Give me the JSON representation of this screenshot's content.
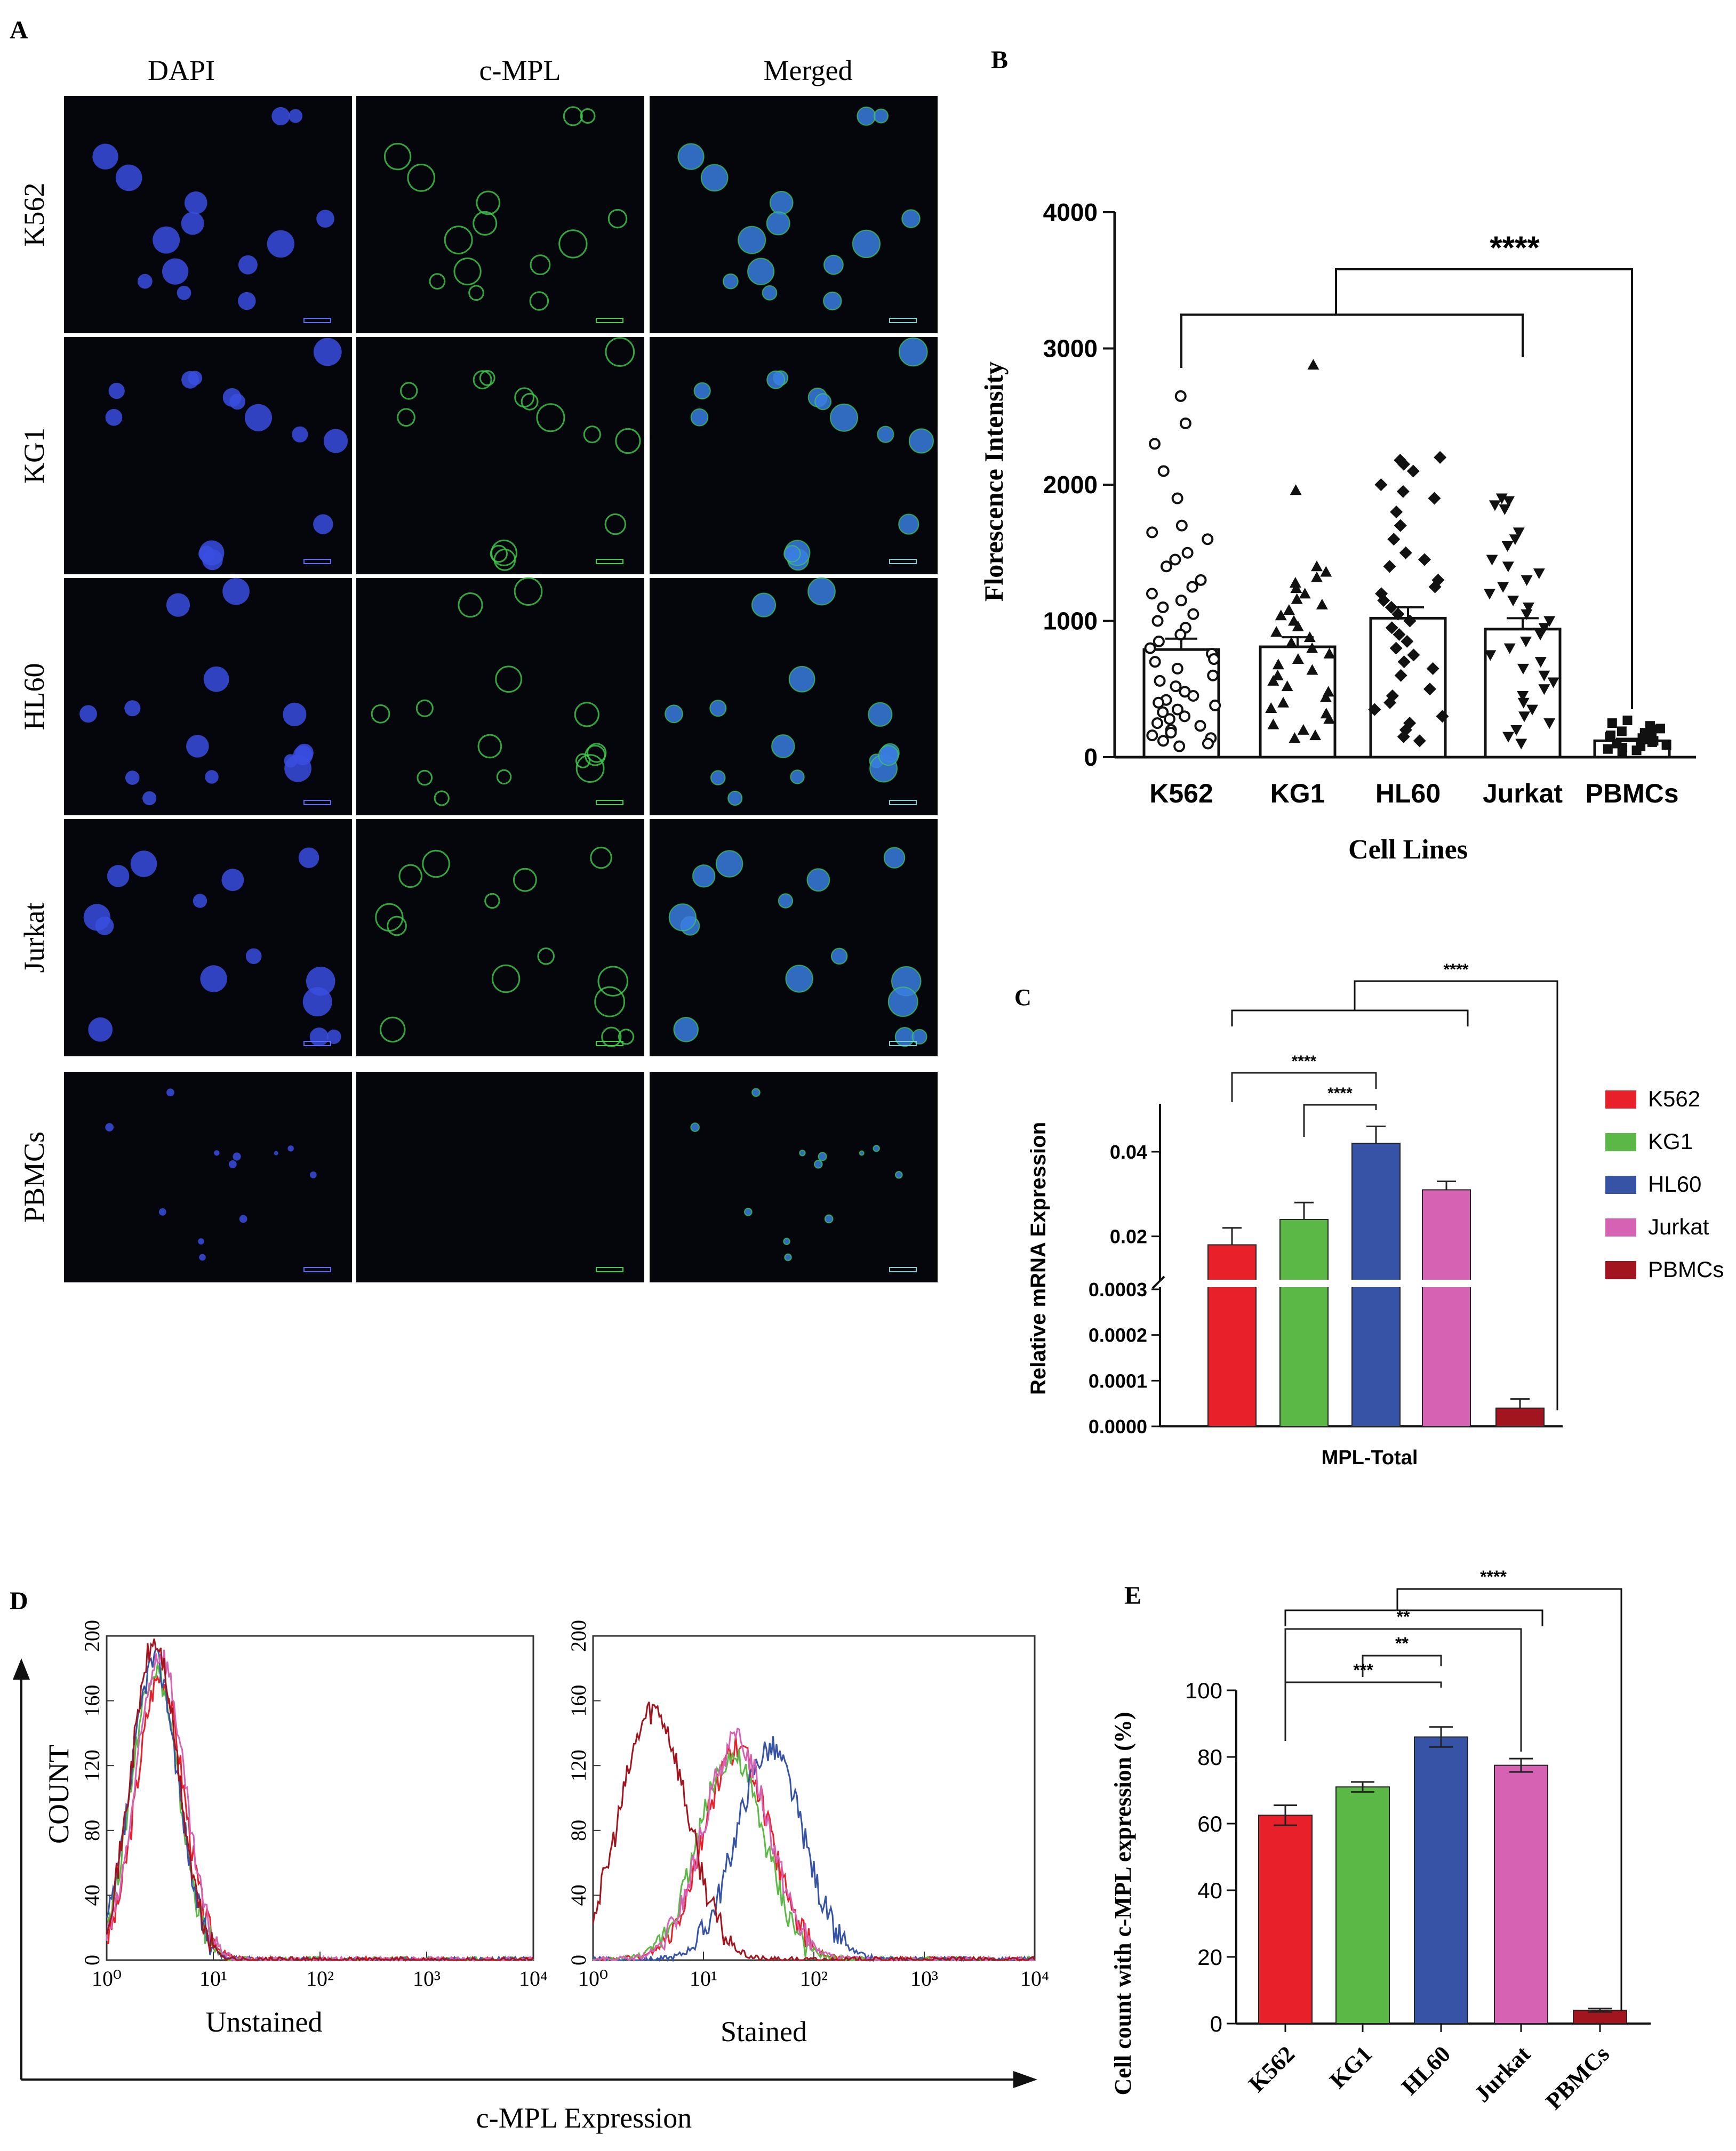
{
  "panel_letters": {
    "a": "A",
    "b": "B",
    "c": "C",
    "d": "D",
    "e": "E"
  },
  "colors": {
    "K562": "#e8202a",
    "KG1": "#5cb846",
    "HL60": "#3653a5",
    "Jurkat": "#d562b3",
    "PBMCs": "#a3151e",
    "dapi": "#3a4de0",
    "cmpl": "#3fd04a"
  },
  "panel_a": {
    "columns": [
      "DAPI",
      "c-MPL",
      "Merged"
    ],
    "rows": [
      "K562",
      "KG1",
      "HL60",
      "Jurkat",
      "PBMCs"
    ]
  },
  "chart_data": [
    {
      "panel": "B",
      "type": "scatter",
      "title": "",
      "xlabel": "Cell Lines",
      "ylabel": "Florescence Intensity",
      "categories": [
        "K562",
        "KG1",
        "HL60",
        "Jurkat",
        "PBMCs"
      ],
      "ylim": [
        0,
        4000
      ],
      "yticks": [
        "0",
        "1000",
        "2000",
        "3000",
        "4000"
      ],
      "bar_means": [
        790,
        810,
        1020,
        940,
        120
      ],
      "bar_errors": [
        80,
        70,
        80,
        80,
        15
      ],
      "markers": [
        "circle",
        "triangle",
        "diamond",
        "triangle-down",
        "square"
      ],
      "points": [
        [
          2650,
          2450,
          2300,
          2100,
          1900,
          1700,
          1650,
          1600,
          1500,
          1450,
          1400,
          1300,
          1250,
          1200,
          1150,
          1100,
          1050,
          1000,
          950,
          900,
          850,
          800,
          760,
          720,
          700,
          650,
          600,
          560,
          520,
          480,
          450,
          420,
          400,
          380,
          350,
          330,
          300,
          280,
          250,
          230,
          200,
          180,
          160,
          140,
          120,
          100,
          80
        ],
        [
          2880,
          1960,
          1400,
          1360,
          1320,
          1280,
          1240,
          1200,
          1160,
          1120,
          1080,
          1040,
          1000,
          960,
          920,
          880,
          840,
          800,
          760,
          720,
          680,
          640,
          600,
          560,
          520,
          480,
          440,
          400,
          360,
          320,
          280,
          240,
          200,
          160,
          140
        ],
        [
          2200,
          2180,
          2150,
          2100,
          2000,
          1950,
          1900,
          1800,
          1700,
          1600,
          1500,
          1450,
          1400,
          1300,
          1250,
          1200,
          1150,
          1100,
          1050,
          1000,
          950,
          900,
          850,
          800,
          750,
          700,
          650,
          600,
          500,
          450,
          400,
          350,
          300,
          250,
          200,
          150,
          120
        ],
        [
          1900,
          1880,
          1850,
          1820,
          1650,
          1600,
          1550,
          1450,
          1400,
          1350,
          1300,
          1250,
          1200,
          1150,
          1100,
          1050,
          1000,
          950,
          900,
          850,
          800,
          750,
          700,
          650,
          600,
          550,
          500,
          450,
          400,
          350,
          300,
          250,
          200,
          150,
          100
        ],
        [
          270,
          250,
          230,
          210,
          200,
          190,
          180,
          170,
          160,
          150,
          140,
          130,
          120,
          110,
          100,
          90,
          80,
          70,
          60,
          50,
          40
        ]
      ],
      "annotations": [
        {
          "text": "****",
          "from": "K562-Jurkat",
          "to": "PBMCs"
        }
      ]
    },
    {
      "panel": "C",
      "type": "bar",
      "title": "",
      "xlabel": "MPL-Total",
      "ylabel": "Relative mRNA Expression",
      "series": [
        {
          "name": "K562",
          "value": 0.018,
          "error": 0.004
        },
        {
          "name": "KG1",
          "value": 0.024,
          "error": 0.004
        },
        {
          "name": "HL60",
          "value": 0.042,
          "error": 0.004
        },
        {
          "name": "Jurkat",
          "value": 0.031,
          "error": 0.002
        },
        {
          "name": "PBMCs",
          "value": 4e-05,
          "error": 2e-05
        }
      ],
      "y_axis_break": true,
      "yticks_lower": [
        "0.0000",
        "0.0001",
        "0.0002",
        "0.0003"
      ],
      "yticks_upper": [
        "0.02",
        "0.04"
      ],
      "legend_position": "right",
      "annotations": [
        {
          "text": "****",
          "from": "K562-Jurkat",
          "to": "PBMCs"
        },
        {
          "text": "****",
          "from": "K562",
          "to": "HL60"
        },
        {
          "text": "****",
          "from": "KG1",
          "to": "HL60"
        }
      ]
    },
    {
      "panel": "D",
      "type": "line",
      "title": "",
      "xlabel": "c-MPL Expression",
      "ylabel": "COUNT",
      "subplots": [
        {
          "label": "Unstained",
          "series": [
            {
              "name": "K562",
              "peak_log10": 0.5,
              "peak_count": 175
            },
            {
              "name": "KG1",
              "peak_log10": 0.45,
              "peak_count": 180
            },
            {
              "name": "HL60",
              "peak_log10": 0.45,
              "peak_count": 185
            },
            {
              "name": "Jurkat",
              "peak_log10": 0.5,
              "peak_count": 190
            },
            {
              "name": "PBMCs",
              "peak_log10": 0.45,
              "peak_count": 195
            }
          ]
        },
        {
          "label": "Stained",
          "series": [
            {
              "name": "K562",
              "peak_log10": 1.3,
              "peak_count": 130
            },
            {
              "name": "KG1",
              "peak_log10": 1.25,
              "peak_count": 125
            },
            {
              "name": "HL60",
              "peak_log10": 1.6,
              "peak_count": 130
            },
            {
              "name": "Jurkat",
              "peak_log10": 1.3,
              "peak_count": 135
            },
            {
              "name": "PBMCs",
              "peak_log10": 0.55,
              "peak_count": 155
            }
          ]
        }
      ],
      "xticks": [
        "10⁰",
        "10¹",
        "10²",
        "10³",
        "10⁴"
      ],
      "yticks": [
        "0",
        "40",
        "80",
        "120",
        "160",
        "200"
      ]
    },
    {
      "panel": "E",
      "type": "bar",
      "title": "",
      "xlabel": "",
      "ylabel": "Cell count with c-MPL expression (%)",
      "categories": [
        "K562",
        "KG1",
        "HL60",
        "Jurkat",
        "PBMCs"
      ],
      "values": [
        62.5,
        71,
        86,
        77.5,
        4
      ],
      "errors": [
        3,
        1.5,
        3,
        2,
        0.5
      ],
      "ylim": [
        0,
        100
      ],
      "yticks": [
        "0",
        "20",
        "40",
        "60",
        "80",
        "100"
      ],
      "annotations": [
        {
          "text": "****",
          "from": "K562-Jurkat",
          "to": "PBMCs"
        },
        {
          "text": "**",
          "from": "K562",
          "to": "Jurkat"
        },
        {
          "text": "***",
          "from": "K562",
          "to": "HL60"
        },
        {
          "text": "**",
          "from": "KG1",
          "to": "HL60"
        }
      ]
    }
  ]
}
